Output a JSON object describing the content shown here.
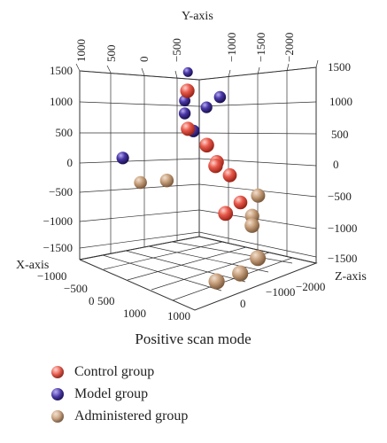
{
  "chart_data": {
    "type": "scatter3d",
    "caption": "Positive scan mode",
    "axes": {
      "x": {
        "label": "X-axis",
        "ticks": [
          "−1000",
          "−500",
          "0",
          "500",
          "1000"
        ]
      },
      "y": {
        "label": "Y-axis",
        "ticks": [
          "1000",
          "500",
          "0",
          "−500",
          "−1000",
          "−1500",
          "−2000"
        ],
        "ticks_right": [
          "−1000",
          "−500",
          "0",
          "500",
          "1000"
        ]
      },
      "z": {
        "label": "Z-axis",
        "ticks": [
          "1000",
          "0",
          "−1000",
          "−2000"
        ]
      },
      "vertical_ticks": [
        "1500",
        "1000",
        "500",
        "0",
        "−500",
        "−1000",
        "−1500"
      ]
    },
    "series": [
      {
        "name": "Control group",
        "color": "#e0483c",
        "points": [
          [
            340,
            140,
            1350
          ],
          [
            300,
            110,
            700
          ],
          [
            250,
            380,
            470
          ],
          [
            150,
            430,
            100
          ],
          [
            0,
            300,
            80
          ],
          [
            -100,
            420,
            -150
          ],
          [
            150,
            600,
            -650
          ],
          [
            -250,
            450,
            -650
          ]
        ]
      },
      {
        "name": "Model group",
        "color": "#3b2a8c",
        "points": [
          [
            -700,
            -900,
            1050
          ],
          [
            -450,
            -100,
            900
          ],
          [
            -300,
            -550,
            800
          ],
          [
            -420,
            -300,
            700
          ],
          [
            -200,
            -450,
            650
          ],
          [
            -100,
            -200,
            450
          ],
          [
            500,
            -800,
            100
          ]
        ]
      },
      {
        "name": "Administered group",
        "color": "#c79f7e",
        "points": [
          [
            400,
            -600,
            -300
          ],
          [
            350,
            -200,
            -200
          ],
          [
            -200,
            700,
            -800
          ],
          [
            -100,
            800,
            -900
          ],
          [
            -300,
            700,
            -500
          ],
          [
            100,
            1100,
            -1300
          ],
          [
            500,
            800,
            -1600
          ],
          [
            300,
            1000,
            -1500
          ]
        ]
      }
    ]
  }
}
